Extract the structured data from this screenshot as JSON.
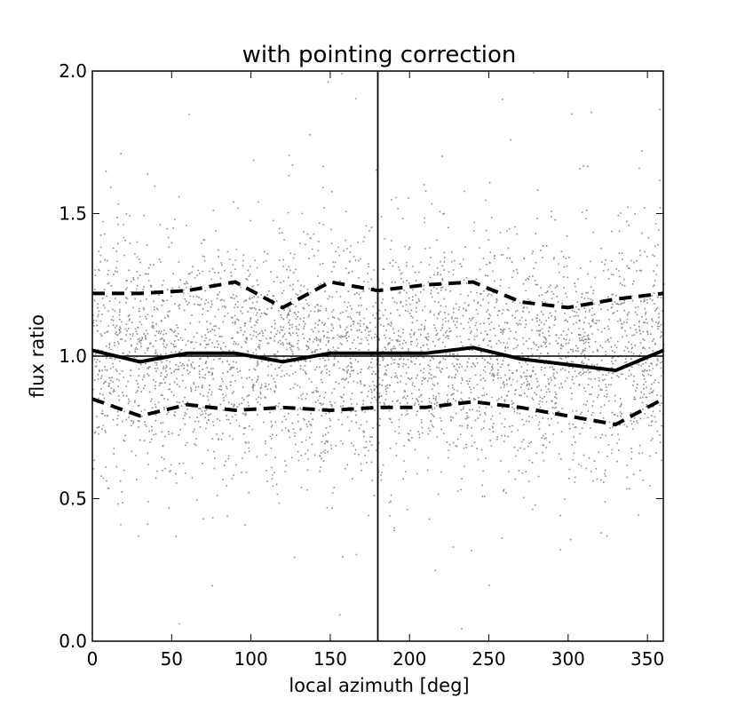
{
  "chart_data": {
    "type": "scatter",
    "title": "with pointing correction",
    "xlabel": "local azimuth [deg]",
    "ylabel": "flux ratio",
    "xlim": [
      0,
      360
    ],
    "ylim": [
      0.0,
      2.0
    ],
    "xticks": [
      0,
      50,
      100,
      150,
      200,
      250,
      300,
      350
    ],
    "yticks": [
      0.0,
      0.5,
      1.0,
      1.5,
      2.0
    ],
    "ytick_labels": [
      "0.0",
      "0.5",
      "1.0",
      "1.5",
      "2.0"
    ],
    "grid": false,
    "reference_lines": {
      "horizontal_y": 1.0,
      "vertical_x": 180
    },
    "scatter": {
      "color": "#8c8c8c",
      "approx_point_count": 4500,
      "center": 1.0,
      "spread": 0.2
    },
    "series": [
      {
        "style": "solid",
        "x": [
          0,
          30,
          60,
          90,
          120,
          150,
          180,
          210,
          240,
          270,
          300,
          330,
          360
        ],
        "values": [
          1.02,
          0.98,
          1.01,
          1.01,
          0.98,
          1.01,
          1.01,
          1.01,
          1.03,
          0.99,
          0.97,
          0.95,
          1.02
        ]
      },
      {
        "style": "dashed",
        "x": [
          0,
          30,
          60,
          90,
          120,
          150,
          180,
          210,
          240,
          270,
          300,
          330,
          360
        ],
        "values": [
          1.22,
          1.22,
          1.23,
          1.26,
          1.17,
          1.26,
          1.23,
          1.25,
          1.26,
          1.19,
          1.17,
          1.2,
          1.22
        ]
      },
      {
        "style": "dashed",
        "x": [
          0,
          30,
          60,
          90,
          120,
          150,
          180,
          210,
          240,
          270,
          300,
          330,
          360
        ],
        "values": [
          0.85,
          0.79,
          0.83,
          0.81,
          0.82,
          0.81,
          0.82,
          0.82,
          0.84,
          0.82,
          0.79,
          0.76,
          0.85
        ]
      }
    ]
  }
}
